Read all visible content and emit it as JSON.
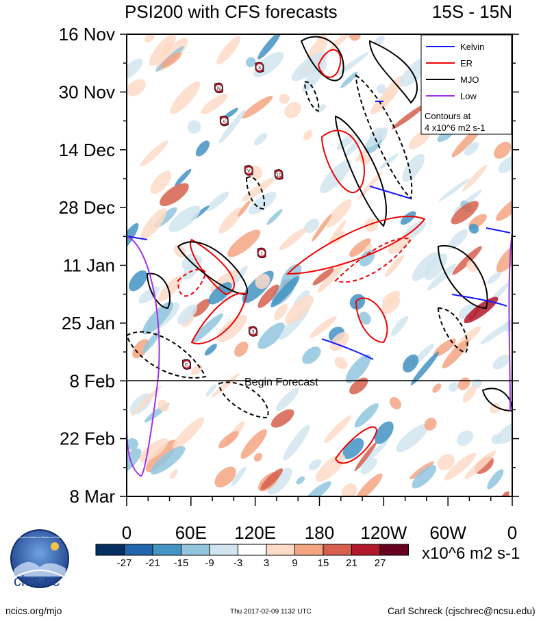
{
  "chart_data": {
    "type": "heatmap",
    "title": "PSI200 with CFS forecasts",
    "subtitle": "15S - 15N",
    "x_ticks": [
      "0",
      "60E",
      "120E",
      "180",
      "120W",
      "60W",
      "0"
    ],
    "x_tick_lon": [
      0,
      60,
      120,
      180,
      240,
      300,
      360
    ],
    "xlim": [
      0,
      360
    ],
    "y_ticks": [
      "16 Nov",
      "30 Nov",
      "14 Dec",
      "28 Dec",
      "11 Jan",
      "25 Jan",
      "8 Feb",
      "22 Feb",
      "8 Mar"
    ],
    "y_tick_day": [
      0,
      14,
      28,
      42,
      56,
      70,
      84,
      98,
      112
    ],
    "ylim": [
      0,
      112
    ],
    "forecast_start_day": 84,
    "forecast_label": "Begin Forecast",
    "colorbar": {
      "colors": [
        "#053061",
        "#2166ac",
        "#4393c3",
        "#92c5de",
        "#d1e5f0",
        "#ffffff",
        "#fddbc7",
        "#f4a582",
        "#d6604d",
        "#b2182b",
        "#67001f"
      ],
      "tick_labels": [
        "-27",
        "-21",
        "-15",
        "-9",
        "-3",
        "3",
        "9",
        "15",
        "21",
        "27"
      ],
      "units": "x10^6 m2 s-1"
    },
    "legend": {
      "position": "top-right",
      "entries": [
        {
          "name": "Kelvin",
          "color": "#1515ff"
        },
        {
          "name": "ER",
          "color": "#ee0000"
        },
        {
          "name": "MJO",
          "color": "#000000"
        },
        {
          "name": "Low",
          "color": "#a030e6"
        }
      ],
      "note": [
        "Contours at",
        "4 x10^6 m2 s-1"
      ]
    },
    "storm_markers": [
      {
        "label": "3",
        "lon": 124,
        "day": 8
      },
      {
        "label": "N",
        "lon": 86,
        "day": 13
      },
      {
        "label": "V",
        "lon": 91,
        "day": 21
      },
      {
        "label": "V",
        "lon": 114,
        "day": 33
      },
      {
        "label": "10",
        "lon": 142,
        "day": 34
      },
      {
        "label": "1",
        "lon": 126,
        "day": 53
      },
      {
        "label": "3",
        "lon": 118,
        "day": 72
      },
      {
        "label": "C",
        "lon": 56,
        "day": 80
      }
    ]
  },
  "footer": {
    "left": "ncics.org/mjo",
    "center": "Thu 2017-02-09 1132 UTC",
    "right": "Carl Schreck (cjschrec@ncsu.edu)"
  },
  "logo": {
    "text": "cics.nc",
    "ring_text": "Cooperative Institute for Climate and Satellites"
  }
}
